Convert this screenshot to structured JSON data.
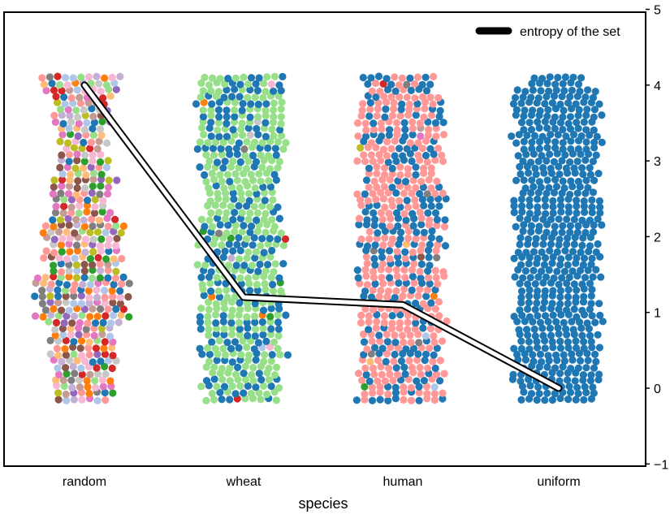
{
  "chart_data": {
    "type": "swarm",
    "title": "",
    "xlabel": "species",
    "ylabel": "",
    "categories": [
      "random",
      "wheat",
      "human",
      "uniform"
    ],
    "ylim": [
      -1,
      5
    ],
    "yticks": [
      -1,
      0,
      1,
      2,
      3,
      4,
      5
    ],
    "y_axis_side": "right",
    "grid": false,
    "legend": {
      "position": "top-right",
      "entries": [
        "entropy of the set"
      ]
    },
    "entropy_series": {
      "name": "entropy of the set",
      "values": [
        4.0,
        1.2,
        1.1,
        0.0
      ]
    },
    "swarm_y_range": [
      -0.15,
      4.15
    ],
    "dominant_colors": {
      "random": [],
      "wheat": [
        "#98df8a",
        "#1f77b4"
      ],
      "human": [
        "#ff9896",
        "#1f77b4"
      ],
      "uniform": [
        "#1f77b4"
      ]
    },
    "palette": [
      "#1f77b4",
      "#aec7e8",
      "#ff7f0e",
      "#ffbb78",
      "#2ca02c",
      "#98df8a",
      "#d62728",
      "#ff9896",
      "#9467bd",
      "#c5b0d5",
      "#8c564b",
      "#c49c94",
      "#e377c2",
      "#f7b6d2",
      "#7f7f7f",
      "#c7c7c7",
      "#bcbd22"
    ]
  }
}
